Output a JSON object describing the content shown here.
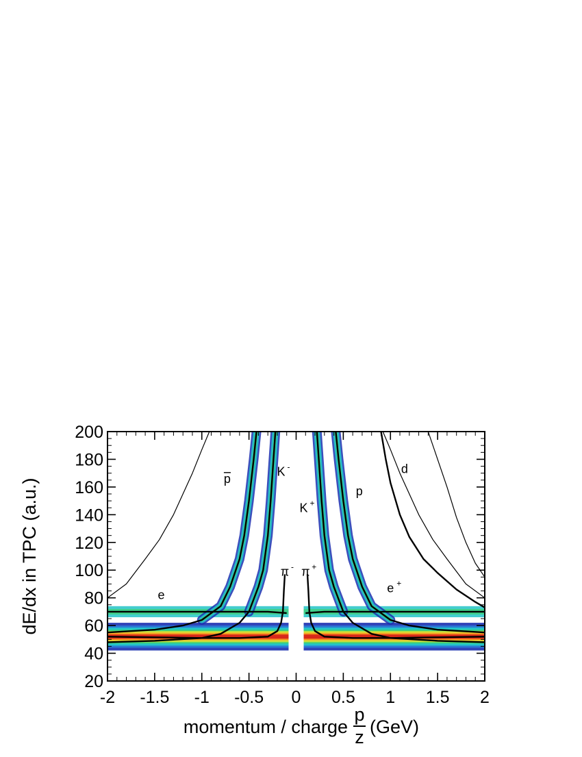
{
  "chart_data": {
    "type": "heatmap",
    "xlabel": "momentum / charge",
    "xlabel_fraction_num": "p",
    "xlabel_fraction_den": "z",
    "xlabel_unit": "(GeV)",
    "ylabel": "dE/dx in TPC (a.u.)",
    "xlim": [
      -2,
      2
    ],
    "ylim": [
      20,
      200
    ],
    "x_ticks": [
      -2,
      -1.5,
      -1,
      -0.5,
      0,
      0.5,
      1,
      1.5,
      2
    ],
    "x_tick_labels": [
      "-2",
      "-1.5",
      "-1",
      "-0.5",
      "0",
      "0.5",
      "1",
      "1.5",
      "2"
    ],
    "y_ticks": [
      20,
      40,
      60,
      80,
      100,
      120,
      140,
      160,
      180,
      200
    ],
    "y_tick_labels": [
      "20",
      "40",
      "60",
      "80",
      "100",
      "120",
      "140",
      "160",
      "180",
      "200"
    ],
    "colormap": [
      "#1a2fb0",
      "#2a7fd8",
      "#24c4c8",
      "#3ed07a",
      "#c8e03a",
      "#f2c02a",
      "#f07a1e",
      "#d8281a"
    ],
    "curve_color": "#000000",
    "curves": [
      {
        "label": "e",
        "sup": "",
        "label_x": -1.43,
        "label_y": 79,
        "style": "thin",
        "points": [
          [
            -2,
            80
          ],
          [
            -1.8,
            90
          ],
          [
            -1.6,
            108
          ],
          [
            -1.45,
            122
          ],
          [
            -1.3,
            140
          ],
          [
            -1.2,
            155
          ],
          [
            -1.1,
            170
          ],
          [
            -1.0,
            187
          ],
          [
            -0.92,
            200
          ]
        ]
      },
      {
        "label": "e",
        "sup": "+",
        "label_x": 1.0,
        "label_y": 84,
        "style": "thin",
        "points": [
          [
            0.92,
            200
          ],
          [
            1.0,
            187
          ],
          [
            1.1,
            170
          ],
          [
            1.2,
            155
          ],
          [
            1.3,
            140
          ],
          [
            1.45,
            122
          ],
          [
            1.6,
            108
          ],
          [
            1.8,
            90
          ],
          [
            2,
            80
          ]
        ]
      },
      {
        "label": "p",
        "sup": "",
        "bar": true,
        "label_x": -0.73,
        "label_y": 163,
        "style": "thick",
        "points": [
          [
            -2,
            55
          ],
          [
            -1.5,
            57
          ],
          [
            -1.2,
            60
          ],
          [
            -1.0,
            64
          ],
          [
            -0.8,
            74
          ],
          [
            -0.7,
            88
          ],
          [
            -0.6,
            108
          ],
          [
            -0.55,
            125
          ],
          [
            -0.5,
            150
          ],
          [
            -0.45,
            180
          ],
          [
            -0.42,
            200
          ]
        ]
      },
      {
        "label": "p",
        "sup": "",
        "bar": false,
        "label_x": 0.67,
        "label_y": 154,
        "style": "thick",
        "points": [
          [
            2,
            55
          ],
          [
            1.5,
            57
          ],
          [
            1.2,
            60
          ],
          [
            1.0,
            64
          ],
          [
            0.8,
            74
          ],
          [
            0.7,
            88
          ],
          [
            0.6,
            108
          ],
          [
            0.55,
            125
          ],
          [
            0.5,
            150
          ],
          [
            0.45,
            180
          ],
          [
            0.42,
            200
          ]
        ]
      },
      {
        "label": "K",
        "sup": "-",
        "label_x": -0.16,
        "label_y": 168,
        "style": "thick",
        "points": [
          [
            -2,
            48
          ],
          [
            -1.5,
            49
          ],
          [
            -1.0,
            51
          ],
          [
            -0.8,
            54
          ],
          [
            -0.6,
            62
          ],
          [
            -0.5,
            70
          ],
          [
            -0.4,
            88
          ],
          [
            -0.35,
            100
          ],
          [
            -0.3,
            125
          ],
          [
            -0.27,
            150
          ],
          [
            -0.24,
            180
          ],
          [
            -0.22,
            200
          ]
        ]
      },
      {
        "label": "K",
        "sup": "+",
        "label_x": 0.08,
        "label_y": 142,
        "style": "thick",
        "points": [
          [
            2,
            48
          ],
          [
            1.5,
            49
          ],
          [
            1.0,
            51
          ],
          [
            0.8,
            54
          ],
          [
            0.6,
            62
          ],
          [
            0.5,
            70
          ],
          [
            0.4,
            88
          ],
          [
            0.35,
            100
          ],
          [
            0.3,
            125
          ],
          [
            0.27,
            150
          ],
          [
            0.24,
            180
          ],
          [
            0.22,
            200
          ]
        ]
      },
      {
        "label": "d",
        "sup": "",
        "label_x": 1.15,
        "label_y": 170,
        "style": "thick",
        "points": [
          [
            0.9,
            200
          ],
          [
            0.95,
            180
          ],
          [
            1.0,
            163
          ],
          [
            1.1,
            140
          ],
          [
            1.2,
            124
          ],
          [
            1.35,
            108
          ],
          [
            1.5,
            98
          ],
          [
            1.7,
            86
          ],
          [
            1.9,
            77
          ],
          [
            2.0,
            73
          ]
        ]
      },
      {
        "label": "π",
        "sup": "-",
        "label_x": -0.12,
        "label_y": 96,
        "style": "thick",
        "points": [
          [
            -2,
            52
          ],
          [
            -1.5,
            51.5
          ],
          [
            -1.0,
            51
          ],
          [
            -0.6,
            51
          ],
          [
            -0.3,
            52
          ],
          [
            -0.2,
            56
          ],
          [
            -0.16,
            62
          ],
          [
            -0.14,
            70
          ],
          [
            -0.13,
            85
          ],
          [
            -0.12,
            97
          ]
        ]
      },
      {
        "label": "π",
        "sup": "+",
        "label_x": 0.1,
        "label_y": 96,
        "style": "thick",
        "points": [
          [
            2,
            52
          ],
          [
            1.5,
            51.5
          ],
          [
            1.0,
            51
          ],
          [
            0.6,
            51
          ],
          [
            0.3,
            52
          ],
          [
            0.2,
            56
          ],
          [
            0.16,
            62
          ],
          [
            0.14,
            70
          ],
          [
            0.13,
            85
          ],
          [
            0.12,
            97
          ]
        ]
      },
      {
        "label": "",
        "sup": "",
        "style": "thick",
        "points": [
          [
            -2,
            70
          ],
          [
            -1.0,
            70
          ],
          [
            -0.3,
            70
          ],
          [
            -0.1,
            69
          ]
        ]
      },
      {
        "label": "",
        "sup": "",
        "style": "thick",
        "points": [
          [
            0.1,
            69
          ],
          [
            0.3,
            70
          ],
          [
            1.0,
            70
          ],
          [
            2,
            70
          ]
        ]
      },
      {
        "label": "",
        "sup": "",
        "style": "thin",
        "points": [
          [
            1.4,
            200
          ],
          [
            1.5,
            180
          ],
          [
            1.6,
            160
          ],
          [
            1.7,
            138
          ],
          [
            1.8,
            120
          ],
          [
            1.9,
            105
          ],
          [
            2.0,
            95
          ]
        ]
      }
    ],
    "bands": [
      {
        "name": "pion",
        "x": [
          -2,
          2
        ],
        "center": 52,
        "width": 6
      },
      {
        "name": "electron",
        "x": [
          -2,
          2
        ],
        "center": 70,
        "width": 4
      }
    ]
  }
}
